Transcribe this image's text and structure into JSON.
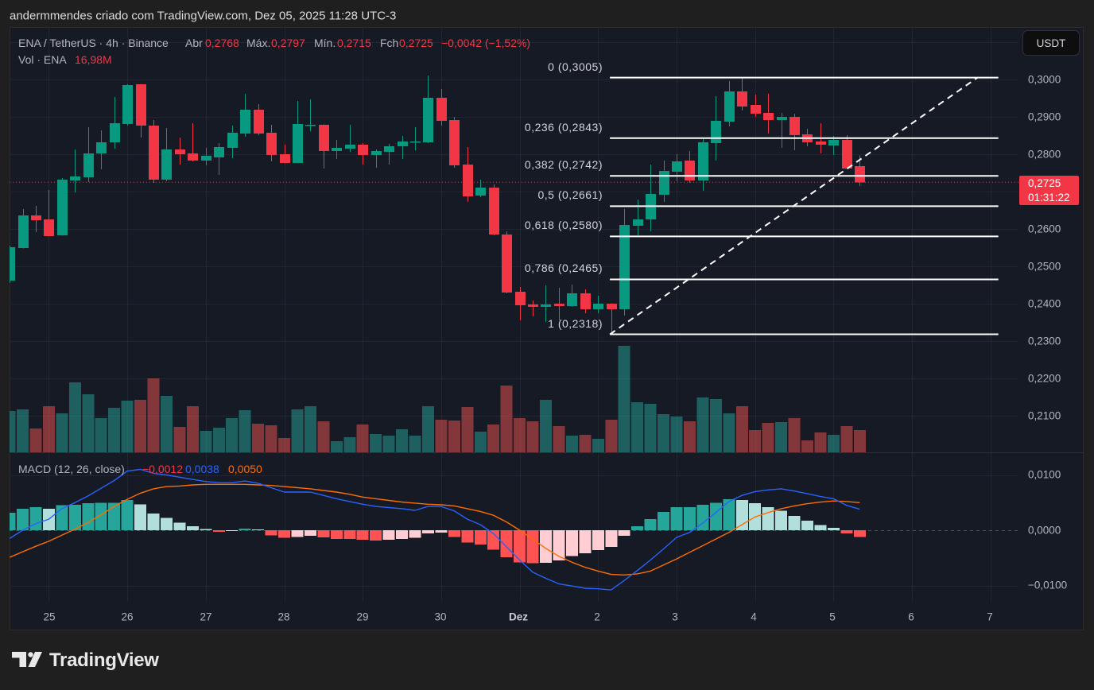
{
  "header": {
    "attribution": "andermmendes criado com TradingView.com, Dez 05, 2025 11:28 UTC-3"
  },
  "legend": {
    "symbol": "ENA / TetherUS · 4h · Binance",
    "open_label": "Abr",
    "open": "0,2768",
    "high_label": "Máx.",
    "high": "0,2797",
    "low_label": "Mín.",
    "low": "0,2715",
    "close_label": "Fch",
    "close": "0,2725",
    "change": "−0,0042 (−1,52%)",
    "volume_label": "Vol · ENA",
    "volume": "16,98M"
  },
  "currency_button": {
    "label": "USDT"
  },
  "last_price": {
    "value": "0,2725",
    "countdown": "01:31:22"
  },
  "price_axis": [
    "0,3000",
    "0,2900",
    "0,2800",
    "0,2600",
    "0,2500",
    "0,2400",
    "0,2300",
    "0,2200",
    "0,2100"
  ],
  "macd_legend": {
    "title": "MACD (12, 26, close)",
    "histogram": "−0,0012",
    "macd": "0,0038",
    "signal": "0,0050"
  },
  "macd_axis": [
    "0,0100",
    "0,0000",
    "−0,0100"
  ],
  "time_axis": [
    "25",
    "26",
    "27",
    "28",
    "29",
    "30",
    "Dez",
    "2",
    "3",
    "4",
    "5",
    "6",
    "7"
  ],
  "fibonacci": [
    {
      "label": "0 (0,3005)",
      "ratio": 0,
      "price": 0.3005
    },
    {
      "label": "0,236 (0,2843)",
      "ratio": 0.236,
      "price": 0.2843
    },
    {
      "label": "0,382 (0,2742)",
      "ratio": 0.382,
      "price": 0.2742
    },
    {
      "label": "0,5 (0,2661)",
      "ratio": 0.5,
      "price": 0.2661
    },
    {
      "label": "0,618 (0,2580)",
      "ratio": 0.618,
      "price": 0.258
    },
    {
      "label": "0,786 (0,2465)",
      "ratio": 0.786,
      "price": 0.2465
    },
    {
      "label": "1 (0,2318)",
      "ratio": 1,
      "price": 0.2318
    }
  ],
  "brand": {
    "name": "TradingView"
  },
  "colors": {
    "up": "#089981",
    "down": "#f23645",
    "volume_up": "rgba(38,166,154,0.5)",
    "volume_down": "rgba(239,83,80,0.5)",
    "grid": "#222633",
    "separator": "#2a2e39",
    "macd_line": "#2962ff",
    "signal_line": "#ff6d00",
    "hist_up_rising": "#26a69a",
    "hist_up_falling": "#b2dfdb",
    "hist_down_falling": "#ff5252",
    "hist_down_rising": "#ffcdd2",
    "fib_line": "#ffffff",
    "last_price": "#f23645"
  },
  "chart_data": [
    {
      "pane": "price",
      "type": "bar",
      "subtype": "candlestick",
      "title": "ENA / TetherUS · 4h · Binance",
      "ylabel": "USDT",
      "ylim": [
        0.2045,
        0.3143
      ],
      "gridlines": [
        0.31,
        0.3,
        0.29,
        0.28,
        0.27,
        0.26,
        0.25,
        0.24,
        0.23,
        0.22,
        0.21
      ],
      "y_ticks": [
        0.3,
        0.29,
        0.28,
        0.26,
        0.25,
        0.24,
        0.23,
        0.22,
        0.21
      ],
      "x_ticks": [
        {
          "index": 3,
          "label": "25"
        },
        {
          "index": 9,
          "label": "26"
        },
        {
          "index": 15,
          "label": "27"
        },
        {
          "index": 21,
          "label": "28"
        },
        {
          "index": 27,
          "label": "29"
        },
        {
          "index": 33,
          "label": "30"
        },
        {
          "index": 39,
          "label": "Dez"
        },
        {
          "index": 45,
          "label": "2"
        },
        {
          "index": 51,
          "label": "3"
        },
        {
          "index": 57,
          "label": "4"
        },
        {
          "index": 63,
          "label": "5"
        },
        {
          "index": 69,
          "label": "6"
        },
        {
          "index": 75,
          "label": "7"
        }
      ],
      "last_price": 0.2725,
      "ohlc_columns": [
        "open",
        "high",
        "low",
        "close"
      ],
      "ohlc": [
        [
          0.2462,
          0.2555,
          0.2455,
          0.2551
        ],
        [
          0.2549,
          0.2653,
          0.2548,
          0.2636
        ],
        [
          0.2636,
          0.2662,
          0.2591,
          0.2623
        ],
        [
          0.2626,
          0.2704,
          0.258,
          0.2581
        ],
        [
          0.2583,
          0.2736,
          0.2582,
          0.2732
        ],
        [
          0.273,
          0.2813,
          0.2698,
          0.274
        ],
        [
          0.2738,
          0.2872,
          0.2726,
          0.2802
        ],
        [
          0.2802,
          0.2864,
          0.276,
          0.2832
        ],
        [
          0.2832,
          0.2953,
          0.2815,
          0.2883
        ],
        [
          0.2881,
          0.2987,
          0.2877,
          0.2985
        ],
        [
          0.2987,
          0.2988,
          0.2845,
          0.2877
        ],
        [
          0.2877,
          0.2891,
          0.2723,
          0.2732
        ],
        [
          0.2732,
          0.287,
          0.2728,
          0.2813
        ],
        [
          0.2813,
          0.2845,
          0.2772,
          0.28
        ],
        [
          0.2802,
          0.2883,
          0.2781,
          0.2783
        ],
        [
          0.2783,
          0.2817,
          0.277,
          0.2796
        ],
        [
          0.2791,
          0.283,
          0.2745,
          0.2819
        ],
        [
          0.2817,
          0.2877,
          0.2789,
          0.2857
        ],
        [
          0.2855,
          0.2962,
          0.2847,
          0.2919
        ],
        [
          0.2919,
          0.2934,
          0.2851,
          0.2855
        ],
        [
          0.2857,
          0.2879,
          0.2781,
          0.2798
        ],
        [
          0.28,
          0.2826,
          0.2776,
          0.2777
        ],
        [
          0.2777,
          0.2943,
          0.2776,
          0.2881
        ],
        [
          0.2878,
          0.2947,
          0.2862,
          0.2879
        ],
        [
          0.2879,
          0.288,
          0.2762,
          0.2809
        ],
        [
          0.2809,
          0.2838,
          0.2787,
          0.2817
        ],
        [
          0.2815,
          0.2879,
          0.2806,
          0.2826
        ],
        [
          0.2826,
          0.283,
          0.2772,
          0.2798
        ],
        [
          0.2798,
          0.2813,
          0.2764,
          0.2809
        ],
        [
          0.2806,
          0.2828,
          0.2772,
          0.2821
        ],
        [
          0.2821,
          0.2849,
          0.2787,
          0.2834
        ],
        [
          0.2833,
          0.2872,
          0.2811,
          0.2834
        ],
        [
          0.2832,
          0.3011,
          0.283,
          0.2951
        ],
        [
          0.2951,
          0.2974,
          0.2877,
          0.2889
        ],
        [
          0.2891,
          0.29,
          0.2764,
          0.277
        ],
        [
          0.2772,
          0.2819,
          0.2672,
          0.2687
        ],
        [
          0.2689,
          0.2732,
          0.2685,
          0.2711
        ],
        [
          0.2711,
          0.2719,
          0.2583,
          0.2585
        ],
        [
          0.2585,
          0.2594,
          0.2428,
          0.243
        ],
        [
          0.2432,
          0.2445,
          0.2355,
          0.2396
        ],
        [
          0.2398,
          0.2409,
          0.2366,
          0.2391
        ],
        [
          0.2391,
          0.2449,
          0.2351,
          0.2398
        ],
        [
          0.24,
          0.2443,
          0.2355,
          0.2394
        ],
        [
          0.2394,
          0.2451,
          0.2393,
          0.2428
        ],
        [
          0.2428,
          0.2438,
          0.2374,
          0.2385
        ],
        [
          0.2385,
          0.2421,
          0.2374,
          0.24
        ],
        [
          0.24,
          0.2401,
          0.2318,
          0.2385
        ],
        [
          0.2385,
          0.2653,
          0.2368,
          0.2611
        ],
        [
          0.2609,
          0.2679,
          0.2583,
          0.2626
        ],
        [
          0.2626,
          0.2772,
          0.2594,
          0.2694
        ],
        [
          0.2691,
          0.2783,
          0.2672,
          0.2755
        ],
        [
          0.2753,
          0.28,
          0.2728,
          0.2781
        ],
        [
          0.2783,
          0.2809,
          0.2723,
          0.273
        ],
        [
          0.273,
          0.2843,
          0.2702,
          0.2832
        ],
        [
          0.283,
          0.2955,
          0.2783,
          0.2889
        ],
        [
          0.2887,
          0.2996,
          0.2874,
          0.2968
        ],
        [
          0.2968,
          0.3005,
          0.2917,
          0.2928
        ],
        [
          0.2932,
          0.296,
          0.29,
          0.2909
        ],
        [
          0.2911,
          0.2962,
          0.2855,
          0.2891
        ],
        [
          0.2891,
          0.2911,
          0.2817,
          0.29
        ],
        [
          0.29,
          0.2909,
          0.2811,
          0.2851
        ],
        [
          0.2853,
          0.2868,
          0.2821,
          0.2832
        ],
        [
          0.2834,
          0.2883,
          0.2802,
          0.2826
        ],
        [
          0.2823,
          0.2849,
          0.2798,
          0.2838
        ],
        [
          0.2838,
          0.2851,
          0.2761,
          0.2762
        ],
        [
          0.2768,
          0.2797,
          0.2715,
          0.2725
        ]
      ],
      "fibonacci_retracement": {
        "levels": [
          0,
          0.236,
          0.382,
          0.5,
          0.618,
          0.786,
          1
        ],
        "prices": [
          0.3005,
          0.2843,
          0.2742,
          0.2661,
          0.258,
          0.2465,
          0.2318
        ],
        "x_start_index": 45.9,
        "x_end_index": 75.6,
        "trend_line": {
          "start": {
            "index": 45.9,
            "price": 0.2318
          },
          "end": {
            "index": 74.0,
            "price": 0.3005
          }
        }
      }
    },
    {
      "pane": "volume",
      "type": "bar",
      "title": "Vol · ENA",
      "unit": "M",
      "values": [
        31.5,
        32.7,
        18.2,
        35.2,
        29.7,
        53.4,
        44.3,
        26.1,
        34.0,
        39.4,
        40.0,
        56.4,
        43.1,
        19.4,
        35.2,
        16.4,
        18.8,
        26.1,
        32.1,
        21.8,
        20.6,
        10.9,
        32.7,
        35.2,
        23.6,
        8.5,
        11.5,
        21.2,
        13.9,
        12.7,
        17.6,
        12.7,
        35.2,
        24.9,
        24.3,
        34.6,
        15.8,
        21.2,
        50.9,
        26.1,
        23.6,
        40.0,
        20.0,
        12.7,
        13.3,
        10.3,
        24.9,
        81.3,
        38.2,
        37.0,
        29.1,
        27.3,
        23.6,
        41.8,
        40.6,
        29.7,
        35.2,
        17.0,
        22.4,
        23.0,
        26.1,
        9.1,
        15.2,
        13.3,
        20.0,
        16.98
      ]
    },
    {
      "pane": "macd",
      "type": "line",
      "title": "MACD (12, 26, close)",
      "ylim": [
        -0.013,
        0.0139
      ],
      "y_ticks": [
        0.01,
        0,
        -0.01
      ],
      "series": [
        {
          "name": "MACD",
          "values": [
            -0.0015,
            0.0,
            0.0012,
            0.002,
            0.0039,
            0.005,
            0.0062,
            0.0076,
            0.009,
            0.0107,
            0.011,
            0.0103,
            0.01,
            0.0096,
            0.0092,
            0.0088,
            0.0086,
            0.0086,
            0.0089,
            0.0085,
            0.0077,
            0.0069,
            0.0069,
            0.0069,
            0.0063,
            0.0057,
            0.0052,
            0.0047,
            0.0043,
            0.0041,
            0.0039,
            0.0036,
            0.0043,
            0.0043,
            0.0035,
            0.002,
            0.001,
            -0.0006,
            -0.003,
            -0.0054,
            -0.0076,
            -0.0087,
            -0.0097,
            -0.0101,
            -0.0105,
            -0.0106,
            -0.0108,
            -0.0091,
            -0.0073,
            -0.0054,
            -0.0034,
            -0.0013,
            -0.0004,
            0.0013,
            0.0032,
            0.0052,
            0.0063,
            0.007,
            0.0073,
            0.0075,
            0.0071,
            0.0066,
            0.0061,
            0.0057,
            0.0045,
            0.0038
          ]
        },
        {
          "name": "Signal",
          "values": [
            -0.0049,
            -0.0039,
            -0.0029,
            -0.002,
            -0.0009,
            0.0002,
            0.0014,
            0.0028,
            0.0043,
            0.0056,
            0.0067,
            0.0075,
            0.0079,
            0.008,
            0.0082,
            0.0083,
            0.0083,
            0.0083,
            0.0083,
            0.0082,
            0.0081,
            0.0079,
            0.0077,
            0.0075,
            0.0072,
            0.0069,
            0.0065,
            0.006,
            0.0057,
            0.0054,
            0.0051,
            0.0049,
            0.0047,
            0.0046,
            0.0044,
            0.0039,
            0.0034,
            0.0027,
            0.0015,
            0.0,
            -0.0016,
            -0.0033,
            -0.0047,
            -0.0058,
            -0.0067,
            -0.0074,
            -0.008,
            -0.0081,
            -0.0079,
            -0.0074,
            -0.0063,
            -0.0052,
            -0.004,
            -0.0028,
            -0.0016,
            -0.0004,
            0.001,
            0.0024,
            0.0032,
            0.0039,
            0.0044,
            0.0048,
            0.0051,
            0.0053,
            0.0052,
            0.005
          ]
        },
        {
          "name": "Histogram",
          "type": "bar",
          "values": [
            0.0032,
            0.0039,
            0.0042,
            0.0039,
            0.0045,
            0.0046,
            0.0049,
            0.005,
            0.005,
            0.0055,
            0.0047,
            0.003,
            0.0022,
            0.0014,
            0.0007,
            0.0002,
            -0.0003,
            -0.0001,
            0.0003,
            0.0001,
            -0.0009,
            -0.0014,
            -0.0012,
            -0.001,
            -0.0013,
            -0.0016,
            -0.0016,
            -0.0017,
            -0.0019,
            -0.0017,
            -0.0016,
            -0.0014,
            -0.0006,
            -0.0004,
            -0.0012,
            -0.0022,
            -0.0026,
            -0.0035,
            -0.0049,
            -0.0058,
            -0.006,
            -0.0059,
            -0.0055,
            -0.0047,
            -0.0042,
            -0.0036,
            -0.003,
            -0.001,
            0.0007,
            0.002,
            0.0033,
            0.0042,
            0.0042,
            0.0046,
            0.005,
            0.0056,
            0.0055,
            0.0049,
            0.0042,
            0.0035,
            0.0026,
            0.0017,
            0.0009,
            0.0004,
            -0.0006,
            -0.0012
          ]
        }
      ]
    }
  ]
}
